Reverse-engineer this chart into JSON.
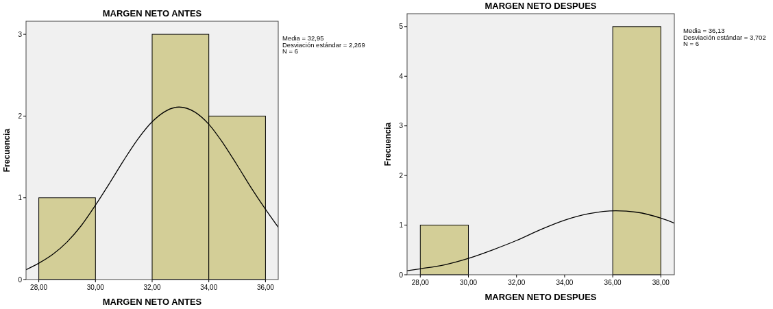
{
  "chart_data": [
    {
      "type": "histogram",
      "title": "MARGEN NETO ANTES",
      "xlabel": "MARGEN NETO ANTES",
      "ylabel": "Frecuencia",
      "bins": [
        28,
        30,
        32,
        34,
        36
      ],
      "values": [
        1,
        0,
        3,
        2
      ],
      "color": "#d3ce97",
      "series": [
        {
          "type": "line",
          "color": "#000000",
          "x": [
            27.55,
            28,
            28.5,
            29,
            29.5,
            30,
            30.5,
            31,
            31.5,
            32,
            32.95,
            33.5,
            34,
            34.5,
            35,
            35.5,
            36,
            36.45
          ],
          "values": [
            0.12,
            0.2,
            0.31,
            0.46,
            0.66,
            0.91,
            1.18,
            1.46,
            1.72,
            1.93,
            2.11,
            2.05,
            1.9,
            1.67,
            1.4,
            1.12,
            0.86,
            0.64
          ]
        }
      ],
      "xlim": [
        27.55,
        36.45
      ],
      "ylim": [
        0,
        3.16
      ],
      "xticks": [
        {
          "value": 28,
          "label": "28,00"
        },
        {
          "value": 30,
          "label": "30,00"
        },
        {
          "value": 32,
          "label": "32,00"
        },
        {
          "value": 34,
          "label": "34,00"
        },
        {
          "value": 36,
          "label": "36,00"
        }
      ],
      "yticks": [
        0,
        1,
        2,
        3
      ],
      "annotations": [
        "Media = 32,95",
        "Desviación estándar = 2,269",
        "N = 6"
      ]
    },
    {
      "type": "histogram",
      "title": "MARGEN NETO DESPUES",
      "xlabel": "MARGEN NETO DESPUES",
      "ylabel": "Frecuencia",
      "bins": [
        28,
        30,
        32,
        34,
        36,
        38
      ],
      "values": [
        1,
        0,
        0,
        0,
        5
      ],
      "color": "#d3ce97",
      "series": [
        {
          "type": "line",
          "color": "#000000",
          "x": [
            27.45,
            28,
            29,
            30,
            31,
            32,
            33,
            34,
            35,
            36.13,
            37,
            38,
            38.56
          ],
          "values": [
            0.08,
            0.12,
            0.2,
            0.33,
            0.5,
            0.69,
            0.91,
            1.1,
            1.23,
            1.29,
            1.26,
            1.14,
            1.04
          ]
        }
      ],
      "xlim": [
        27.45,
        38.56
      ],
      "ylim": [
        0,
        5.26
      ],
      "xticks": [
        {
          "value": 28,
          "label": "28,00"
        },
        {
          "value": 30,
          "label": "30,00"
        },
        {
          "value": 32,
          "label": "32,00"
        },
        {
          "value": 34,
          "label": "34,00"
        },
        {
          "value": 36,
          "label": "36,00"
        },
        {
          "value": 38,
          "label": "38,00"
        }
      ],
      "yticks": [
        0,
        1,
        2,
        3,
        4,
        5
      ],
      "annotations": [
        "Media = 36,13",
        "Desviación estándar = 3,702",
        "N = 6"
      ]
    }
  ]
}
